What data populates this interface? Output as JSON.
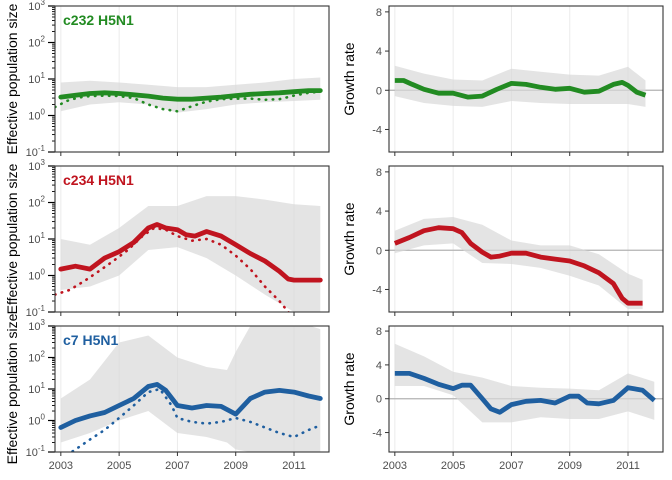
{
  "chart_data": {
    "type": "line",
    "x_ticks": [
      2003,
      2005,
      2007,
      2009,
      2011
    ],
    "x_range": [
      2002.8,
      2012.2
    ],
    "left_axis": {
      "ylabel": "Effective population size",
      "scale": "log10",
      "ylim": [
        0.1,
        1000
      ],
      "ticks": [
        {
          "value": 0.1,
          "base": "10",
          "exp": "-1"
        },
        {
          "value": 1,
          "base": "10",
          "exp": "0"
        },
        {
          "value": 10,
          "base": "10",
          "exp": "1"
        },
        {
          "value": 100,
          "base": "10",
          "exp": "2"
        },
        {
          "value": 1000,
          "base": "10",
          "exp": "3"
        }
      ]
    },
    "right_axis": {
      "ylabel": "Growth rate",
      "ylim": [
        -6.3,
        8.6
      ],
      "ticks": [
        -4,
        0,
        4,
        8
      ],
      "tick_labels": [
        "-4",
        "0",
        "4",
        "8"
      ]
    },
    "panels": [
      {
        "title": "c232 H5N1",
        "color": "#228b22",
        "ne_median": {
          "x": [
            2003.0,
            2003.5,
            2004.0,
            2004.5,
            2005.0,
            2005.5,
            2006.0,
            2006.5,
            2007.0,
            2007.5,
            2008.0,
            2008.5,
            2009.0,
            2009.5,
            2010.0,
            2010.5,
            2011.0,
            2011.5,
            2011.9
          ],
          "y": [
            3.2,
            3.6,
            4.0,
            4.2,
            4.0,
            3.7,
            3.4,
            3.0,
            2.8,
            2.8,
            3.0,
            3.2,
            3.5,
            3.8,
            4.0,
            4.2,
            4.5,
            4.8,
            4.8
          ]
        },
        "ne_band": {
          "x": [
            2003.0,
            2004.0,
            2005.0,
            2006.0,
            2007.0,
            2008.0,
            2009.0,
            2010.0,
            2011.0,
            2011.9
          ],
          "lower": [
            1.3,
            2.0,
            2.3,
            2.0,
            1.2,
            1.5,
            2.0,
            2.3,
            2.5,
            2.7
          ],
          "upper": [
            8,
            9,
            8,
            7,
            6,
            6,
            7,
            8,
            10,
            11
          ]
        },
        "ne_dotted": {
          "x": [
            2002.8,
            2003.2,
            2003.6,
            2004.0,
            2004.5,
            2005.0,
            2005.5,
            2006.0,
            2006.5,
            2007.0,
            2007.5,
            2008.0,
            2008.5,
            2009.0,
            2009.5,
            2010.0,
            2010.5,
            2011.0,
            2011.5,
            2011.9
          ],
          "y": [
            1.7,
            2.5,
            3.1,
            3.4,
            3.5,
            3.4,
            3.0,
            2.0,
            1.5,
            1.3,
            1.8,
            2.4,
            2.8,
            2.9,
            2.9,
            2.7,
            2.8,
            3.5,
            4.2,
            4.5
          ]
        },
        "growth": {
          "x": [
            2003.0,
            2003.3,
            2003.6,
            2004.0,
            2004.5,
            2005.0,
            2005.5,
            2006.0,
            2006.5,
            2007.0,
            2007.5,
            2008.0,
            2008.5,
            2009.0,
            2009.5,
            2010.0,
            2010.5,
            2010.8,
            2011.0,
            2011.3,
            2011.6
          ],
          "y": [
            1.0,
            1.0,
            0.6,
            0.1,
            -0.3,
            -0.3,
            -0.7,
            -0.6,
            0.1,
            0.7,
            0.6,
            0.3,
            0.1,
            0.2,
            -0.2,
            -0.1,
            0.6,
            0.8,
            0.5,
            -0.2,
            -0.5
          ]
        },
        "growth_band": {
          "x": [
            2003.0,
            2004.0,
            2005.0,
            2006.0,
            2007.0,
            2008.0,
            2009.0,
            2010.0,
            2011.0,
            2011.6
          ],
          "lower": [
            -0.6,
            -1.3,
            -1.6,
            -1.7,
            -1.1,
            -1.3,
            -1.4,
            -1.4,
            -1.4,
            -1.7
          ],
          "upper": [
            2.5,
            1.7,
            1.1,
            1.0,
            2.2,
            1.9,
            1.6,
            1.5,
            2.4,
            1.0
          ]
        }
      },
      {
        "title": "c234 H5N1",
        "color": "#c0141f",
        "ne_median": {
          "x": [
            2003.0,
            2003.5,
            2004.0,
            2004.5,
            2005.0,
            2005.5,
            2006.0,
            2006.3,
            2006.6,
            2007.0,
            2007.3,
            2007.6,
            2008.0,
            2008.5,
            2009.0,
            2009.5,
            2010.0,
            2010.5,
            2010.8,
            2011.0,
            2011.5,
            2011.9
          ],
          "y": [
            1.5,
            1.8,
            1.5,
            3.0,
            4.5,
            8.0,
            20,
            25,
            20,
            18,
            13,
            12,
            16,
            12,
            7,
            4,
            2.5,
            1.3,
            0.8,
            0.75,
            0.75,
            0.75
          ]
        },
        "ne_band": {
          "x": [
            2003.0,
            2004.0,
            2005.0,
            2006.0,
            2007.0,
            2008.0,
            2009.0,
            2010.0,
            2011.0,
            2011.9
          ],
          "lower": [
            0.4,
            0.5,
            1.0,
            5,
            6,
            3,
            1.0,
            0.3,
            0.1,
            0.1
          ],
          "upper": [
            10,
            7,
            20,
            80,
            80,
            150,
            150,
            120,
            90,
            80
          ]
        },
        "ne_dotted": {
          "x": [
            2002.8,
            2003.3,
            2003.8,
            2004.3,
            2004.8,
            2005.3,
            2005.8,
            2006.2,
            2006.6,
            2007.0,
            2007.5,
            2008.0,
            2008.5,
            2009.0,
            2009.5,
            2010.0,
            2010.5,
            2010.9
          ],
          "y": [
            0.3,
            0.4,
            0.7,
            1.3,
            2.5,
            5,
            12,
            20,
            18,
            12,
            9,
            10,
            7,
            3.5,
            1.5,
            0.5,
            0.2,
            0.08
          ]
        },
        "growth": {
          "x": [
            2003.0,
            2003.5,
            2004.0,
            2004.5,
            2005.0,
            2005.3,
            2005.6,
            2006.0,
            2006.3,
            2006.6,
            2007.0,
            2007.5,
            2008.0,
            2008.5,
            2009.0,
            2009.5,
            2010.0,
            2010.5,
            2010.8,
            2011.0,
            2011.5
          ],
          "y": [
            0.7,
            1.3,
            2.0,
            2.3,
            2.2,
            1.8,
            0.7,
            -0.2,
            -0.7,
            -0.6,
            -0.3,
            -0.3,
            -0.7,
            -0.9,
            -1.1,
            -1.6,
            -2.3,
            -3.4,
            -4.9,
            -5.4,
            -5.4
          ]
        },
        "growth_band": {
          "x": [
            2003.0,
            2004.0,
            2005.0,
            2006.0,
            2007.0,
            2008.0,
            2009.0,
            2010.0,
            2011.0,
            2011.5
          ],
          "lower": [
            -0.3,
            0.5,
            0.7,
            -1.3,
            -1.4,
            -1.8,
            -2.6,
            -3.6,
            -6.0,
            -6.0
          ],
          "upper": [
            2.0,
            3.2,
            3.4,
            2.6,
            1.0,
            0.5,
            0.5,
            -0.4,
            -2.4,
            -3.0
          ]
        }
      },
      {
        "title": "c7 H5N1",
        "color": "#1f5fa0",
        "ne_median": {
          "x": [
            2003.0,
            2003.5,
            2004.0,
            2004.5,
            2005.0,
            2005.5,
            2006.0,
            2006.3,
            2006.6,
            2007.0,
            2007.5,
            2008.0,
            2008.5,
            2009.0,
            2009.5,
            2010.0,
            2010.5,
            2011.0,
            2011.5,
            2011.9
          ],
          "y": [
            0.6,
            1.0,
            1.4,
            1.8,
            3.0,
            5.0,
            12,
            14,
            9,
            3.0,
            2.5,
            3.0,
            2.8,
            1.6,
            5.0,
            8.0,
            9.0,
            8.0,
            6.0,
            5.0
          ]
        },
        "ne_band": {
          "x": [
            2003.0,
            2004.0,
            2005.0,
            2006.0,
            2007.0,
            2008.0,
            2008.7,
            2009.0,
            2009.5,
            2010.0,
            2011.0,
            2011.9
          ],
          "lower": [
            0.2,
            0.4,
            1.0,
            2.0,
            0.4,
            0.3,
            0.2,
            0.12,
            0.1,
            0.1,
            0.1,
            0.1
          ],
          "upper": [
            5,
            20,
            300,
            500,
            100,
            50,
            40,
            150,
            1000,
            1500,
            1500,
            800
          ]
        },
        "ne_dotted": {
          "x": [
            2003.0,
            2003.5,
            2004.0,
            2004.5,
            2005.0,
            2005.5,
            2006.0,
            2006.4,
            2006.8,
            2007.0,
            2007.5,
            2008.0,
            2008.5,
            2009.0,
            2009.5,
            2010.0,
            2010.5,
            2011.0,
            2011.5,
            2011.9
          ],
          "y": [
            0.06,
            0.12,
            0.25,
            0.5,
            1.2,
            3.0,
            8,
            10,
            3,
            1.2,
            0.9,
            0.8,
            0.9,
            1.2,
            0.9,
            0.6,
            0.4,
            0.3,
            0.5,
            0.7
          ]
        },
        "growth": {
          "x": [
            2003.0,
            2003.5,
            2004.0,
            2004.5,
            2005.0,
            2005.3,
            2005.6,
            2006.0,
            2006.3,
            2006.6,
            2007.0,
            2007.5,
            2008.0,
            2008.5,
            2009.0,
            2009.3,
            2009.6,
            2010.0,
            2010.5,
            2010.8,
            2011.0,
            2011.5,
            2011.9
          ],
          "y": [
            3.0,
            3.0,
            2.4,
            1.7,
            1.2,
            1.6,
            1.6,
            0.0,
            -1.2,
            -1.6,
            -0.7,
            -0.3,
            -0.2,
            -0.5,
            0.3,
            0.3,
            -0.5,
            -0.6,
            -0.2,
            0.7,
            1.3,
            1.0,
            -0.2
          ]
        },
        "growth_band": {
          "x": [
            2003.0,
            2004.0,
            2005.0,
            2006.0,
            2007.0,
            2008.0,
            2009.0,
            2010.0,
            2011.0,
            2011.9
          ],
          "lower": [
            1.5,
            1.5,
            0.4,
            -2.8,
            -2.8,
            -2.2,
            -2.4,
            -2.4,
            -1.5,
            -2.5
          ],
          "upper": [
            6.5,
            5.0,
            3.2,
            2.5,
            1.5,
            1.3,
            1.2,
            1.0,
            3.0,
            2.0
          ]
        }
      }
    ]
  }
}
